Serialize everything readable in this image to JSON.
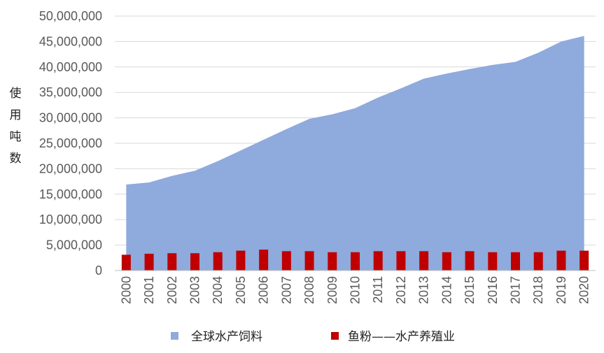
{
  "chart_data": {
    "type": "area",
    "ylabel": "使用吨数",
    "xlabel": "",
    "title": "",
    "ylim": [
      0,
      50000000
    ],
    "ytick_labels": [
      "0",
      "5,000,000",
      "10,000,000",
      "15,000,000",
      "20,000,000",
      "25,000,000",
      "30,000,000",
      "35,000,000",
      "40,000,000",
      "45,000,000",
      "50,000,000"
    ],
    "ytick_values": [
      0,
      5000000,
      10000000,
      15000000,
      20000000,
      25000000,
      30000000,
      35000000,
      40000000,
      45000000,
      50000000
    ],
    "categories": [
      "2000",
      "2001",
      "2002",
      "2003",
      "2004",
      "2005",
      "2006",
      "2007",
      "2008",
      "2009",
      "2010",
      "2011",
      "2012",
      "2013",
      "2014",
      "2015",
      "2016",
      "2017",
      "2018",
      "2019",
      "2020"
    ],
    "grid": true,
    "legend_position": "bottom",
    "series": [
      {
        "name": "全球水产饲料",
        "type": "area",
        "color": "#8faadc",
        "values": [
          16900000,
          17300000,
          18600000,
          19600000,
          21500000,
          23600000,
          25700000,
          27800000,
          29800000,
          30700000,
          31900000,
          34000000,
          35800000,
          37700000,
          38700000,
          39600000,
          40400000,
          41000000,
          42800000,
          45000000,
          46100000
        ]
      },
      {
        "name": "鱼粉——水产养殖业",
        "type": "bar",
        "color": "#c00000",
        "values": [
          3100000,
          3300000,
          3400000,
          3400000,
          3600000,
          3900000,
          4100000,
          3800000,
          3800000,
          3600000,
          3600000,
          3800000,
          3800000,
          3800000,
          3600000,
          3800000,
          3600000,
          3600000,
          3600000,
          3900000,
          3900000
        ]
      }
    ]
  }
}
